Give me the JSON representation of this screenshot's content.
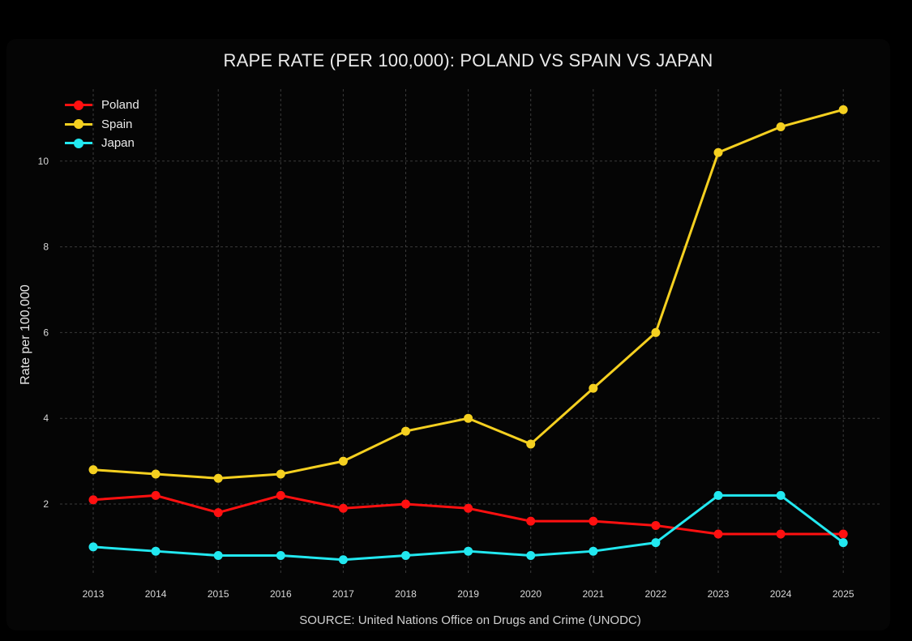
{
  "chart_data": {
    "type": "line",
    "title": "RAPE RATE (PER 100,000): POLAND VS SPAIN VS JAPAN",
    "xlabel": "",
    "ylabel": "Rate per 100,000",
    "source": "SOURCE: United Nations Office on Drugs and Crime (UNODC)",
    "x": [
      "2013",
      "2014",
      "2015",
      "2016",
      "2017",
      "2018",
      "2019",
      "2020",
      "2021",
      "2022",
      "2023",
      "2024",
      "2025"
    ],
    "yticks": [
      "2",
      "4",
      "6",
      "8",
      "10"
    ],
    "ylim": [
      0.4,
      11.6
    ],
    "grid": true,
    "legend_position": "top-left",
    "series": [
      {
        "name": "Poland",
        "color": "#ff1010",
        "values": [
          2.1,
          2.2,
          1.8,
          2.2,
          1.9,
          2.0,
          1.9,
          1.6,
          1.6,
          1.5,
          1.3,
          1.3,
          1.3
        ]
      },
      {
        "name": "Spain",
        "color": "#f5d020",
        "values": [
          2.8,
          2.7,
          2.6,
          2.7,
          3.0,
          3.7,
          4.0,
          3.4,
          4.7,
          6.0,
          10.2,
          10.8,
          11.2
        ]
      },
      {
        "name": "Japan",
        "color": "#22e8f0",
        "values": [
          1.0,
          0.9,
          0.8,
          0.8,
          0.7,
          0.8,
          0.9,
          0.8,
          0.9,
          1.1,
          2.2,
          2.2,
          1.1
        ]
      }
    ]
  }
}
